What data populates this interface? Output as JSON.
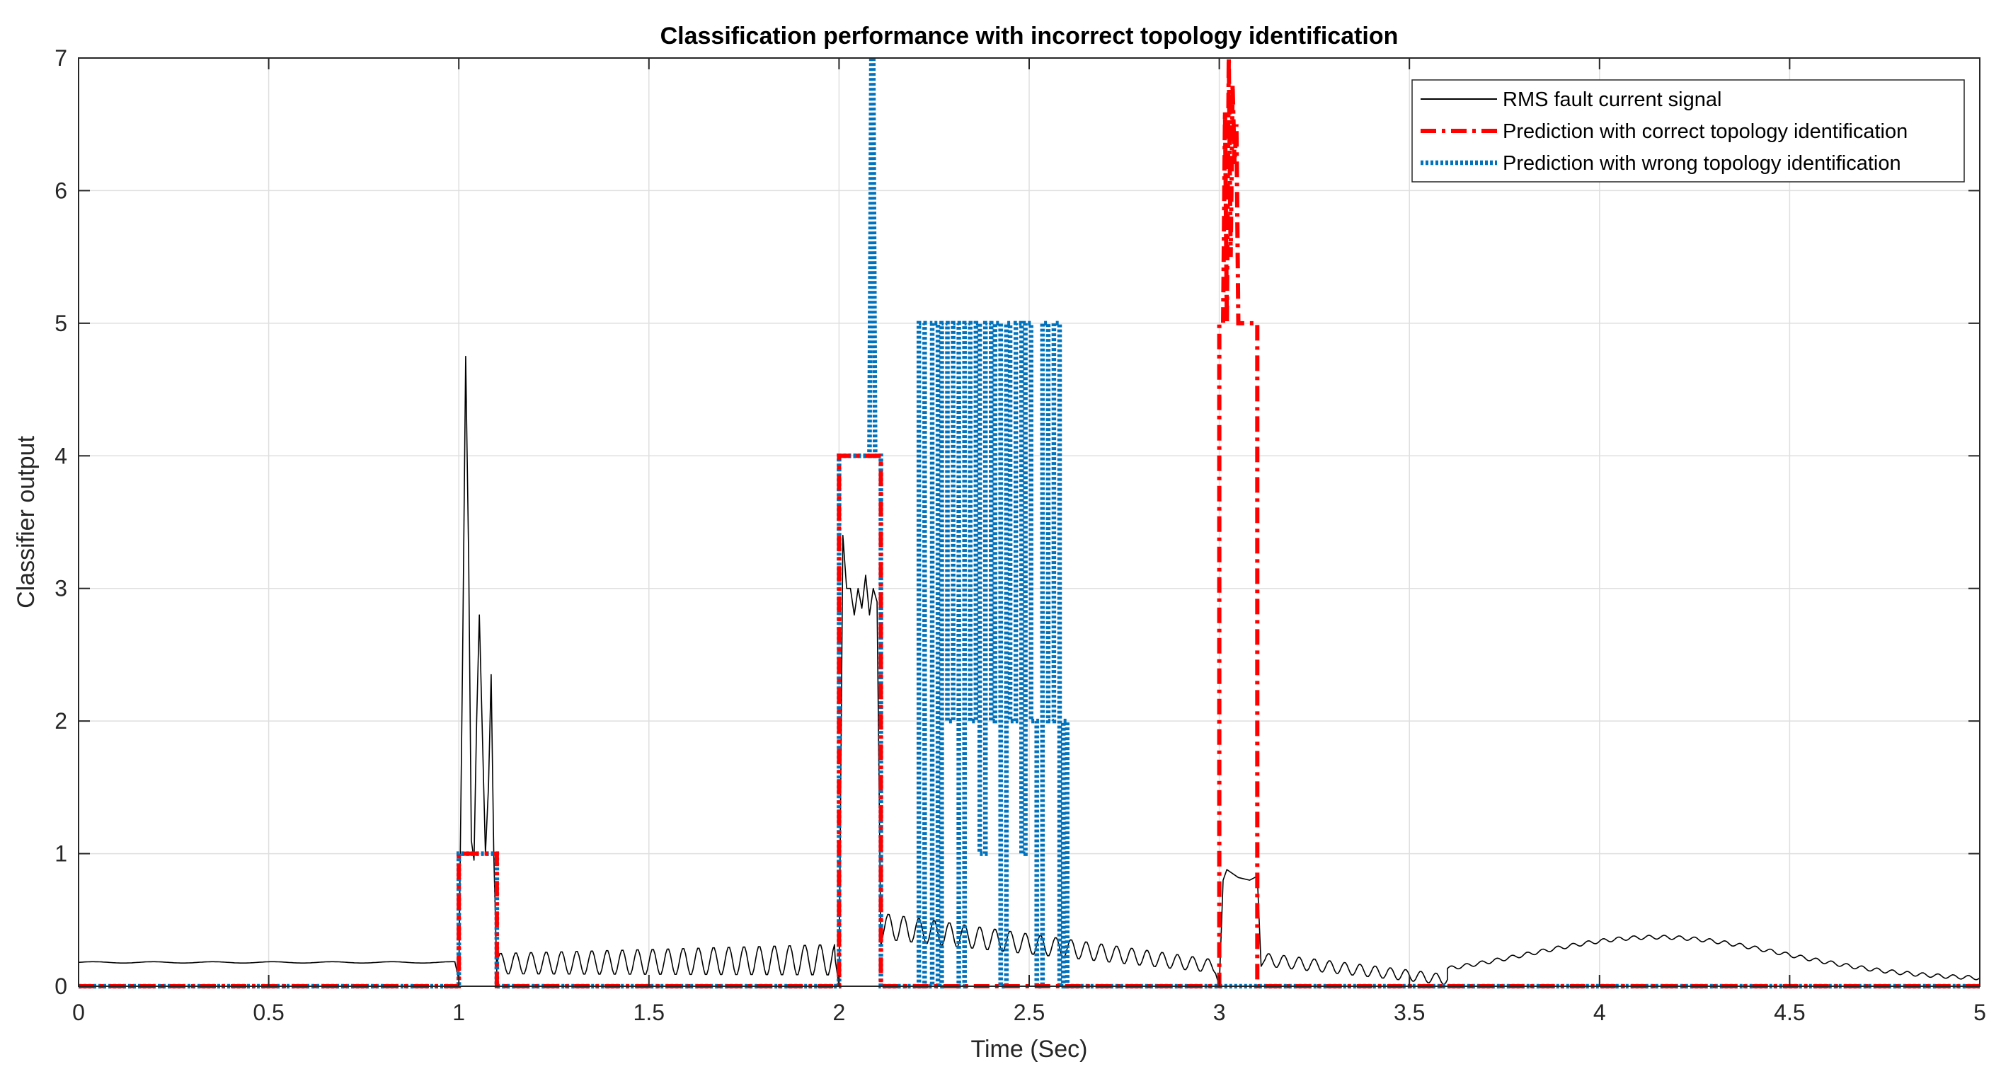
{
  "chart_data": {
    "type": "line",
    "title": "Classification performance with incorrect topology identification",
    "xlabel": "Time (Sec)",
    "ylabel": "Classifier output",
    "xlim": [
      0,
      5
    ],
    "ylim": [
      0,
      7
    ],
    "xticks": [
      0,
      0.5,
      1,
      1.5,
      2,
      2.5,
      3,
      3.5,
      4,
      4.5,
      5
    ],
    "xtick_labels": [
      "0",
      "0.5",
      "1",
      "1.5",
      "2",
      "2.5",
      "3",
      "3.5",
      "4",
      "4.5",
      "5"
    ],
    "yticks": [
      0,
      1,
      2,
      3,
      4,
      5,
      6,
      7
    ],
    "ytick_labels": [
      "0",
      "1",
      "2",
      "3",
      "4",
      "5",
      "6",
      "7"
    ],
    "grid": true,
    "legend_position": "top-right",
    "series": [
      {
        "name": "RMS fault current signal",
        "color": "#000000",
        "style": "solid",
        "segments": [
          {
            "kind": "constant",
            "x0": 0,
            "x1": 0.99,
            "y": 0.18,
            "ripple": 0.005
          },
          {
            "kind": "points",
            "x": [
              0.99,
              1.0,
              1.01,
              1.018,
              1.026,
              1.033,
              1.04,
              1.047,
              1.054,
              1.062,
              1.07,
              1.078,
              1.085,
              1.092,
              1.1
            ],
            "y": [
              0.18,
              0.05,
              2.5,
              4.75,
              3.2,
              1.1,
              0.95,
              2.0,
              2.8,
              1.9,
              1.0,
              1.5,
              2.35,
              1.0,
              0.1
            ]
          },
          {
            "kind": "oscillation",
            "x0": 1.1,
            "x1": 1.99,
            "base0": 0.17,
            "base1": 0.2,
            "amp0": 0.08,
            "amp1": 0.12,
            "period": 0.04
          },
          {
            "kind": "points",
            "x": [
              1.99,
              2.0,
              2.01,
              2.02,
              2.03,
              2.04,
              2.05,
              2.06,
              2.07,
              2.08,
              2.09,
              2.1,
              2.11
            ],
            "y": [
              0.2,
              0.0,
              3.4,
              3.0,
              3.0,
              2.8,
              3.0,
              2.85,
              3.1,
              2.8,
              3.0,
              2.9,
              0.3
            ]
          },
          {
            "kind": "oscillation",
            "x0": 2.12,
            "x1": 2.99,
            "base0": 0.45,
            "base1": 0.15,
            "amp0": 0.1,
            "amp1": 0.05,
            "period": 0.04
          },
          {
            "kind": "points",
            "x": [
              2.99,
              3.0,
              3.01,
              3.02,
              3.05,
              3.08,
              3.1,
              3.11
            ],
            "y": [
              0.1,
              0.0,
              0.8,
              0.88,
              0.82,
              0.8,
              0.83,
              0.15
            ]
          },
          {
            "kind": "oscillation",
            "x0": 3.12,
            "x1": 3.6,
            "base0": 0.2,
            "base1": 0.05,
            "amp0": 0.05,
            "amp1": 0.04,
            "period": 0.04
          },
          {
            "kind": "hump",
            "x0": 3.6,
            "x1": 5.0,
            "base": 0.05,
            "peak": 0.37,
            "peak_x": 4.15,
            "ripple": 0.015,
            "period": 0.04
          }
        ]
      },
      {
        "name": "Prediction with correct topology identification",
        "color": "#ff0000",
        "style": "dash-dot",
        "x": [
          0,
          1.0,
          1.0,
          1.1,
          1.1,
          2.0,
          2.0,
          2.11,
          2.11,
          3.0,
          3.0,
          3.01,
          3.015,
          3.02,
          3.025,
          3.03,
          3.035,
          3.04,
          3.045,
          3.05,
          3.055,
          3.1,
          3.1,
          5.0
        ],
        "y": [
          0,
          0,
          1,
          1,
          0,
          0,
          4,
          4,
          0,
          0,
          5,
          5,
          6.6,
          5,
          7,
          5.5,
          6.8,
          6.2,
          6.5,
          5,
          5,
          5,
          0,
          0
        ]
      },
      {
        "name": "Prediction with wrong topology identification",
        "color": "#0072bd",
        "style": "dotted",
        "x": [
          0,
          1.0,
          1.0,
          1.1,
          1.1,
          2.0,
          2.0,
          2.08,
          2.085,
          2.09,
          2.095,
          2.1,
          2.11,
          2.11,
          2.21,
          2.21,
          2.225,
          2.225,
          2.245,
          2.245,
          2.26,
          2.26,
          2.27,
          2.27,
          2.285,
          2.285,
          2.3,
          2.3,
          2.315,
          2.315,
          2.33,
          2.33,
          2.345,
          2.345,
          2.36,
          2.36,
          2.37,
          2.37,
          2.385,
          2.385,
          2.4,
          2.4,
          2.41,
          2.41,
          2.425,
          2.425,
          2.44,
          2.44,
          2.45,
          2.45,
          2.465,
          2.465,
          2.48,
          2.48,
          2.49,
          2.49,
          2.505,
          2.505,
          2.52,
          2.52,
          2.535,
          2.535,
          2.55,
          2.55,
          2.565,
          2.565,
          2.58,
          2.58,
          2.59,
          2.59,
          2.6,
          2.6,
          5.0
        ],
        "y": [
          0,
          0,
          1,
          1,
          0,
          0,
          4,
          4,
          7,
          7,
          4,
          4,
          4,
          0,
          0,
          5,
          5,
          0,
          0,
          5,
          5,
          0,
          0,
          5,
          5,
          2,
          2,
          5,
          5,
          0,
          0,
          5,
          5,
          2,
          2,
          5,
          5,
          1,
          1,
          5,
          5,
          2,
          2,
          5,
          5,
          0,
          0,
          5,
          5,
          2,
          2,
          5,
          5,
          1,
          1,
          5,
          5,
          2,
          2,
          0,
          0,
          5,
          5,
          2,
          2,
          5,
          5,
          0,
          0,
          2,
          2,
          0,
          0
        ]
      }
    ]
  }
}
